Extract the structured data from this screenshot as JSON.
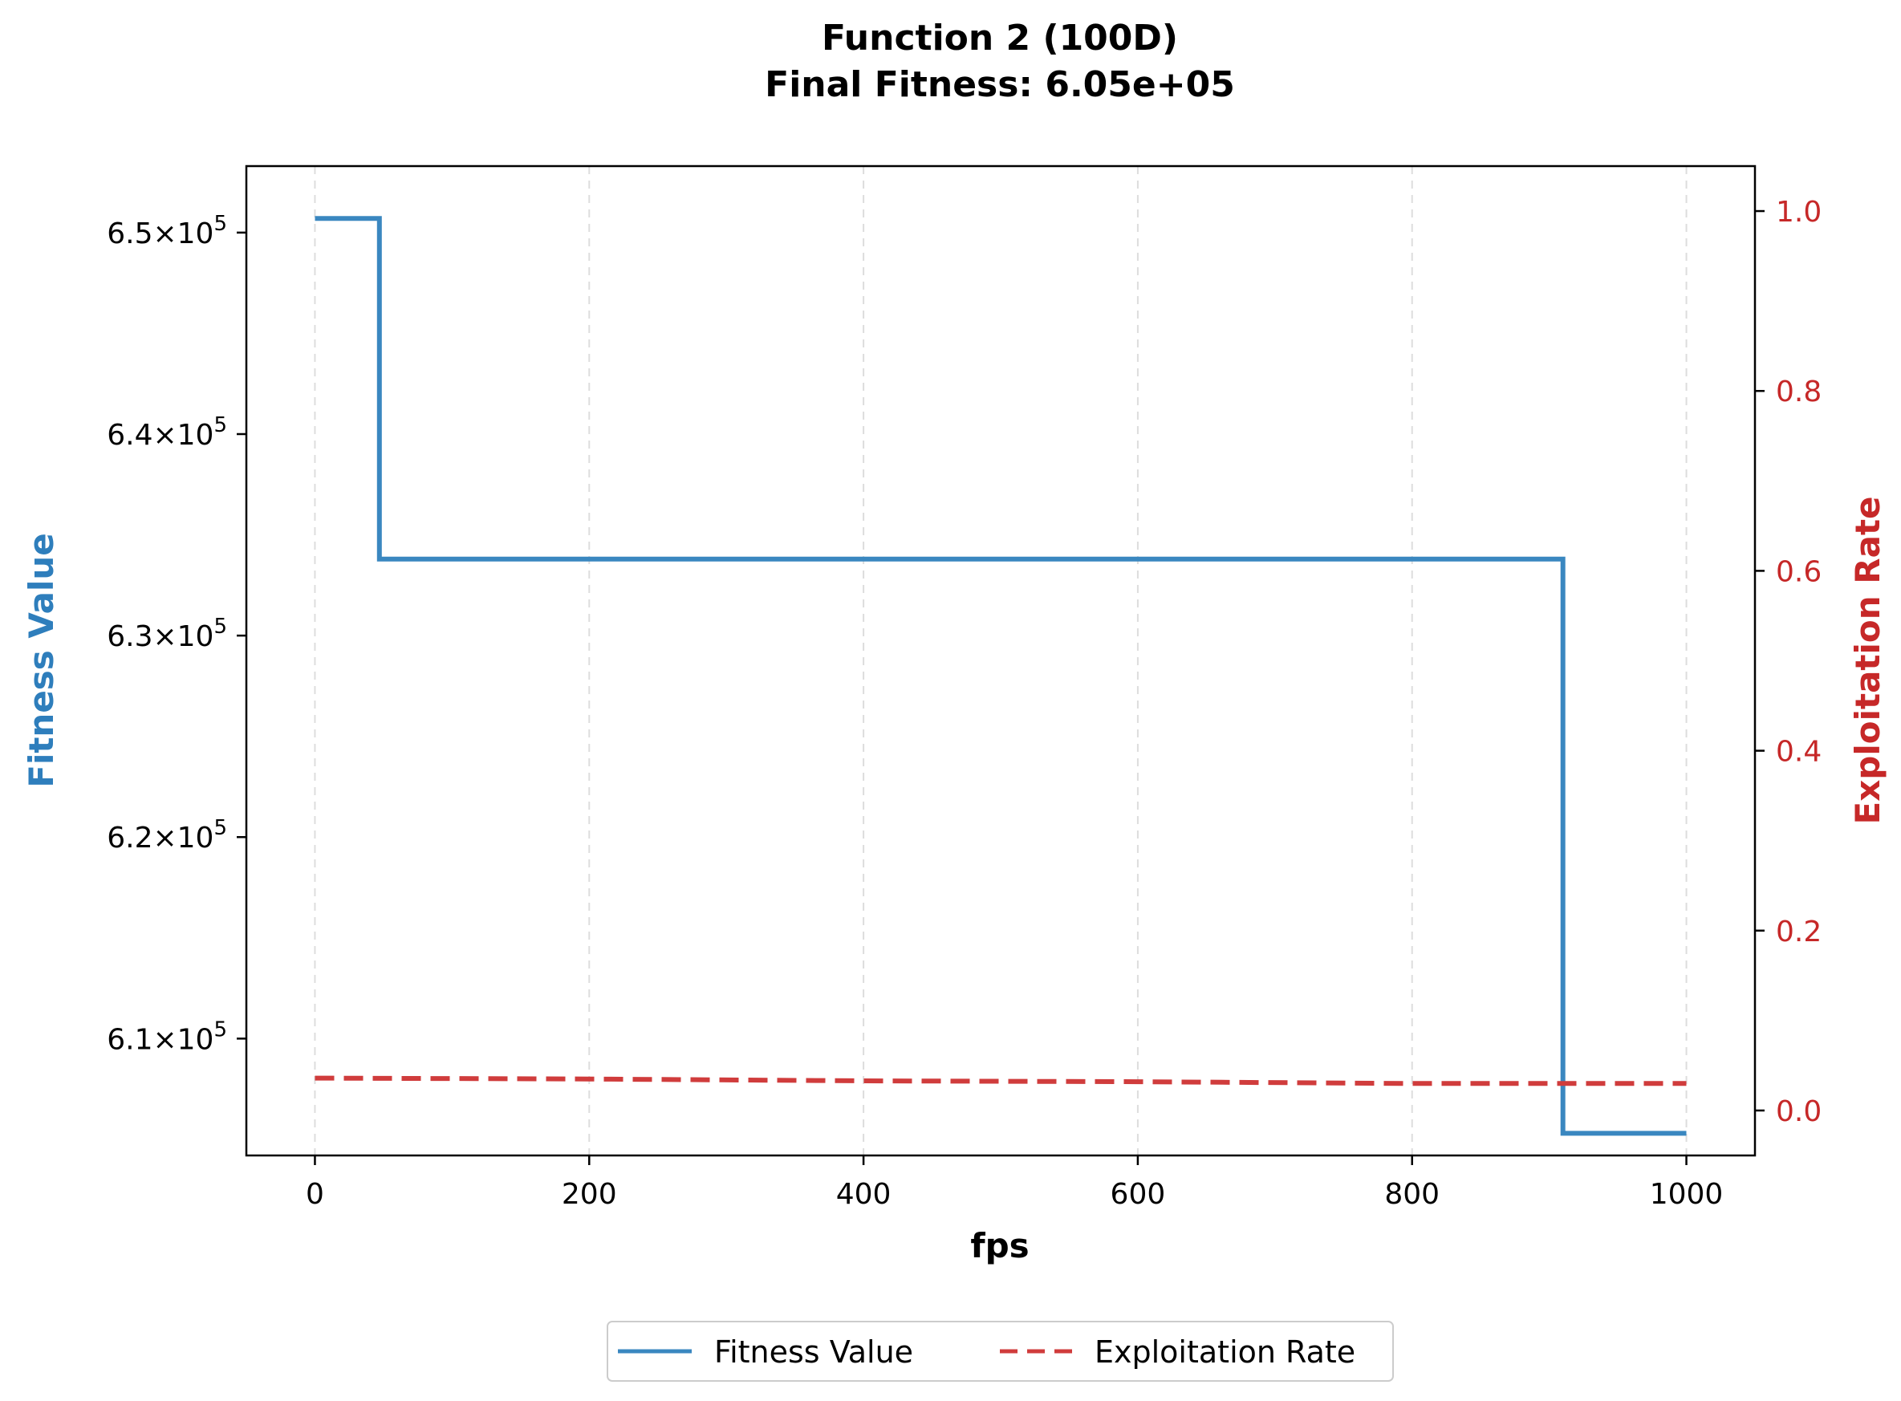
{
  "chart_data": {
    "type": "line",
    "title": "Function 2 (100D)",
    "subtitle": "Final Fitness: 6.05e+05",
    "xlabel": "fps",
    "ylabel_left": "Fitness Value",
    "ylabel_right": "Exploitation Rate",
    "xlim": [
      -50,
      1050
    ],
    "ylim_left": [
      604200,
      653300
    ],
    "ylim_right": [
      -0.05,
      1.05
    ],
    "x_ticks": [
      0,
      200,
      400,
      600,
      800,
      1000
    ],
    "x_tick_labels": [
      "0",
      "200",
      "400",
      "600",
      "800",
      "1000"
    ],
    "y_left_ticks": [
      610000,
      620000,
      630000,
      640000,
      650000
    ],
    "y_left_tick_mantissas": [
      "6.1",
      "6.2",
      "6.3",
      "6.4",
      "6.5"
    ],
    "y_left_tick_base": "×10",
    "y_left_tick_exponent": "5",
    "y_right_ticks": [
      0.0,
      0.2,
      0.4,
      0.6,
      0.8,
      1.0
    ],
    "y_right_tick_labels": [
      "0.0",
      "0.2",
      "0.4",
      "0.6",
      "0.8",
      "1.0"
    ],
    "grid": "x-dashed",
    "legend_position": "bottom-center",
    "series": [
      {
        "name": "Fitness Value",
        "axis": "left",
        "style": "step",
        "color": "#3a87c0",
        "x": [
          0,
          47,
          47,
          910,
          910,
          1000
        ],
        "y": [
          650700,
          650700,
          633800,
          633800,
          605300,
          605300
        ]
      },
      {
        "name": "Exploitation Rate",
        "axis": "right",
        "style": "dashed",
        "color": "#d03c3c",
        "x": [
          0,
          200,
          400,
          600,
          800,
          1000
        ],
        "y": [
          0.036,
          0.035,
          0.033,
          0.032,
          0.03,
          0.03
        ]
      }
    ],
    "colors": {
      "left_axis_label": "#2e7ebc",
      "right_axis": "#c62828"
    }
  }
}
